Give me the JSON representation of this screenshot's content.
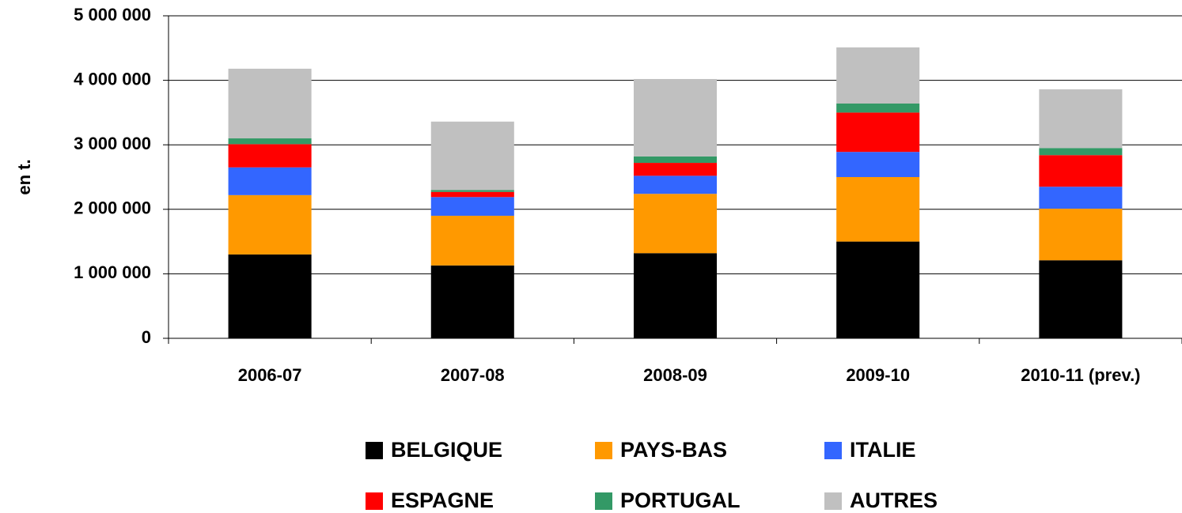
{
  "chart_data": {
    "type": "stacked_bar",
    "y_label": "en t.",
    "categories": [
      "2006-07",
      "2007-08",
      "2008-09",
      "2009-10",
      "2010-11 (prev.)"
    ],
    "series": [
      {
        "name": "BELGIQUE",
        "color": "#000000",
        "values": [
          1300000,
          1130000,
          1320000,
          1500000,
          1210000
        ]
      },
      {
        "name": "PAYS-BAS",
        "color": "#ff9900",
        "values": [
          920000,
          770000,
          920000,
          1000000,
          800000
        ]
      },
      {
        "name": "ITALIE",
        "color": "#3366ff",
        "values": [
          430000,
          290000,
          280000,
          390000,
          340000
        ]
      },
      {
        "name": "ESPAGNE",
        "color": "#ff0000",
        "values": [
          360000,
          80000,
          200000,
          610000,
          490000
        ]
      },
      {
        "name": "PORTUGAL",
        "color": "#339966",
        "values": [
          90000,
          30000,
          100000,
          140000,
          110000
        ]
      },
      {
        "name": "AUTRES",
        "color": "#c0c0c0",
        "values": [
          1080000,
          1060000,
          1200000,
          870000,
          910000
        ]
      }
    ],
    "ylim": [
      0,
      5000000
    ],
    "yticks": [
      0,
      {
        "value": 1000000,
        "label": "1 000 000"
      },
      {
        "value": 2000000,
        "label": "2 000 000"
      },
      {
        "value": 3000000,
        "label": "3 000 000"
      },
      {
        "value": 4000000,
        "label": "4 000 000"
      },
      {
        "value": 5000000,
        "label": "5 000 000"
      }
    ],
    "grid": true
  }
}
